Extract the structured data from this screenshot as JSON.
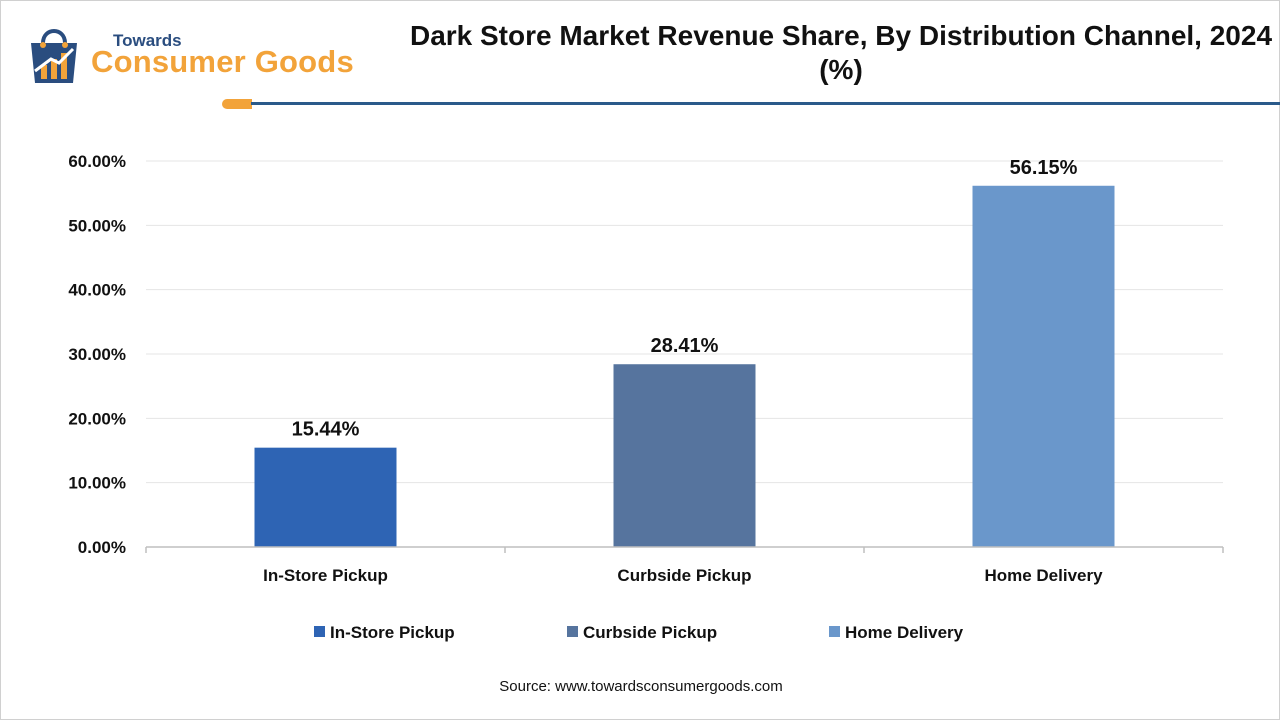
{
  "logo": {
    "line1": "Towards",
    "line2": "Consumer Goods"
  },
  "title": "Dark Store Market Revenue Share, By Distribution Channel, 2024 (%)",
  "source": "Source: www.towardsconsumergoods.com",
  "colors": {
    "brand_blue": "#2a4d7f",
    "brand_orange": "#f2a33a"
  },
  "chart_data": {
    "type": "bar",
    "title": "Dark Store Market Revenue Share, By Distribution Channel, 2024 (%)",
    "categories": [
      "In-Store Pickup",
      "Curbside Pickup",
      "Home Delivery"
    ],
    "values": [
      15.44,
      28.41,
      56.15
    ],
    "data_labels": [
      "15.44%",
      "28.41%",
      "56.15%"
    ],
    "colors": [
      "#2e64b4",
      "#56749e",
      "#6a97cb"
    ],
    "ylim": [
      0,
      60
    ],
    "yticks": [
      0,
      10,
      20,
      30,
      40,
      50,
      60
    ],
    "ytick_labels": [
      "0.00%",
      "10.00%",
      "20.00%",
      "30.00%",
      "40.00%",
      "50.00%",
      "60.00%"
    ],
    "xlabel": "",
    "ylabel": "",
    "grid": true,
    "legend": {
      "position": "bottom",
      "entries": [
        "In-Store Pickup",
        "Curbside Pickup",
        "Home Delivery"
      ]
    }
  }
}
